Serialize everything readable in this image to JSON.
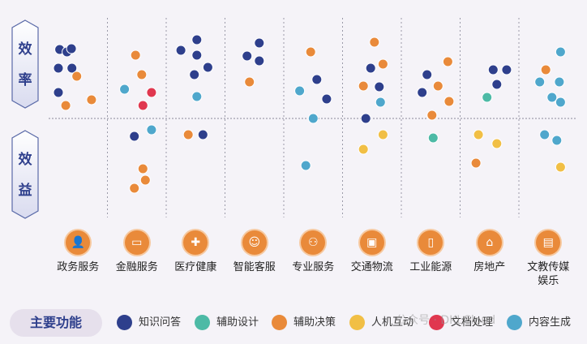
{
  "chart_data": {
    "type": "scatter",
    "rows": [
      "效率",
      "效益"
    ],
    "categories": [
      "政务服务",
      "金融服务",
      "医疗健康",
      "智能客服",
      "专业服务",
      "交通物流",
      "工业能源",
      "房地产",
      "文教传媒娱乐"
    ],
    "category_icons": [
      "people-icon",
      "card-icon",
      "medkit-icon",
      "chat-person-icon",
      "group-icon",
      "train-icon",
      "fuel-icon",
      "house-icon",
      "screen-icon"
    ],
    "y_range": [
      -1,
      1
    ],
    "series": [
      {
        "name": "知识问答",
        "color": "#2e3f8c",
        "points": [
          {
            "cat": 0,
            "x": -0.75,
            "y": 0.85
          },
          {
            "cat": 0,
            "x": -0.45,
            "y": 0.82
          },
          {
            "cat": 0,
            "x": -0.27,
            "y": 0.86
          },
          {
            "cat": 0,
            "x": -0.8,
            "y": 0.62
          },
          {
            "cat": 0,
            "x": -0.25,
            "y": 0.62
          },
          {
            "cat": 0,
            "x": -0.8,
            "y": 0.32
          },
          {
            "cat": 1,
            "x": -0.1,
            "y": -0.22
          },
          {
            "cat": 2,
            "x": -0.6,
            "y": 0.84
          },
          {
            "cat": 2,
            "x": 0.05,
            "y": 0.97
          },
          {
            "cat": 2,
            "x": 0.05,
            "y": 0.78
          },
          {
            "cat": 2,
            "x": 0.5,
            "y": 0.63
          },
          {
            "cat": 2,
            "x": -0.05,
            "y": 0.54
          },
          {
            "cat": 2,
            "x": 0.3,
            "y": -0.2
          },
          {
            "cat": 3,
            "x": -0.3,
            "y": 0.77
          },
          {
            "cat": 3,
            "x": 0.2,
            "y": 0.93
          },
          {
            "cat": 3,
            "x": 0.2,
            "y": 0.71
          },
          {
            "cat": 4,
            "x": 0.15,
            "y": 0.48
          },
          {
            "cat": 4,
            "x": 0.55,
            "y": 0.24
          },
          {
            "cat": 5,
            "x": -0.05,
            "y": 0.62
          },
          {
            "cat": 5,
            "x": 0.3,
            "y": 0.39
          },
          {
            "cat": 5,
            "x": -0.25,
            "y": 0.0
          },
          {
            "cat": 6,
            "x": -0.15,
            "y": 0.54
          },
          {
            "cat": 6,
            "x": -0.35,
            "y": 0.32
          },
          {
            "cat": 7,
            "x": 0.15,
            "y": 0.6
          },
          {
            "cat": 7,
            "x": 0.7,
            "y": 0.6
          },
          {
            "cat": 7,
            "x": 0.3,
            "y": 0.42
          }
        ]
      },
      {
        "name": "辅助设计",
        "color": "#4dbaa6",
        "points": [
          {
            "cat": 6,
            "x": 0.1,
            "y": -0.24
          },
          {
            "cat": 7,
            "x": -0.1,
            "y": 0.26
          }
        ]
      },
      {
        "name": "辅助决策",
        "color": "#e98a3a",
        "points": [
          {
            "cat": 0,
            "x": -0.05,
            "y": 0.52
          },
          {
            "cat": 0,
            "x": -0.5,
            "y": 0.16
          },
          {
            "cat": 0,
            "x": 0.55,
            "y": 0.23
          },
          {
            "cat": 1,
            "x": -0.05,
            "y": 0.78
          },
          {
            "cat": 1,
            "x": 0.2,
            "y": 0.54
          },
          {
            "cat": 1,
            "x": 0.25,
            "y": -0.62
          },
          {
            "cat": 1,
            "x": 0.35,
            "y": -0.76
          },
          {
            "cat": 1,
            "x": -0.1,
            "y": -0.86
          },
          {
            "cat": 2,
            "x": -0.3,
            "y": -0.2
          },
          {
            "cat": 3,
            "x": -0.2,
            "y": 0.45
          },
          {
            "cat": 4,
            "x": -0.1,
            "y": 0.82
          },
          {
            "cat": 5,
            "x": 0.1,
            "y": 0.94
          },
          {
            "cat": 5,
            "x": 0.45,
            "y": 0.67
          },
          {
            "cat": 5,
            "x": -0.35,
            "y": 0.4
          },
          {
            "cat": 6,
            "x": 0.7,
            "y": 0.7
          },
          {
            "cat": 6,
            "x": 0.3,
            "y": 0.4
          },
          {
            "cat": 6,
            "x": 0.75,
            "y": 0.21
          },
          {
            "cat": 6,
            "x": 0.05,
            "y": 0.04
          },
          {
            "cat": 7,
            "x": -0.55,
            "y": -0.55
          },
          {
            "cat": 8,
            "x": -0.1,
            "y": 0.6
          }
        ]
      },
      {
        "name": "人机互动",
        "color": "#f1bf45",
        "points": [
          {
            "cat": 5,
            "x": 0.45,
            "y": -0.2
          },
          {
            "cat": 5,
            "x": -0.35,
            "y": -0.38
          },
          {
            "cat": 7,
            "x": -0.45,
            "y": -0.2
          },
          {
            "cat": 7,
            "x": 0.3,
            "y": -0.31
          },
          {
            "cat": 8,
            "x": 0.5,
            "y": -0.6
          }
        ]
      },
      {
        "name": "文档处理",
        "color": "#e0374f",
        "points": [
          {
            "cat": 1,
            "x": 0.6,
            "y": 0.32
          },
          {
            "cat": 1,
            "x": 0.25,
            "y": 0.16
          }
        ]
      },
      {
        "name": "内容生成",
        "color": "#4fa7cc",
        "points": [
          {
            "cat": 1,
            "x": -0.5,
            "y": 0.36
          },
          {
            "cat": 1,
            "x": 0.6,
            "y": -0.14
          },
          {
            "cat": 2,
            "x": 0.05,
            "y": 0.27
          },
          {
            "cat": 4,
            "x": -0.55,
            "y": 0.34
          },
          {
            "cat": 4,
            "x": 0.0,
            "y": 0.0
          },
          {
            "cat": 4,
            "x": -0.3,
            "y": -0.58
          },
          {
            "cat": 5,
            "x": 0.35,
            "y": 0.2
          },
          {
            "cat": 8,
            "x": 0.5,
            "y": 0.82
          },
          {
            "cat": 8,
            "x": -0.35,
            "y": 0.45
          },
          {
            "cat": 8,
            "x": 0.45,
            "y": 0.45
          },
          {
            "cat": 8,
            "x": 0.15,
            "y": 0.26
          },
          {
            "cat": 8,
            "x": 0.5,
            "y": 0.2
          },
          {
            "cat": 8,
            "x": -0.15,
            "y": -0.2
          },
          {
            "cat": 8,
            "x": 0.35,
            "y": -0.27
          }
        ]
      }
    ]
  },
  "legend_title": "主要功能",
  "watermark": "公众号 · DKLCloud"
}
